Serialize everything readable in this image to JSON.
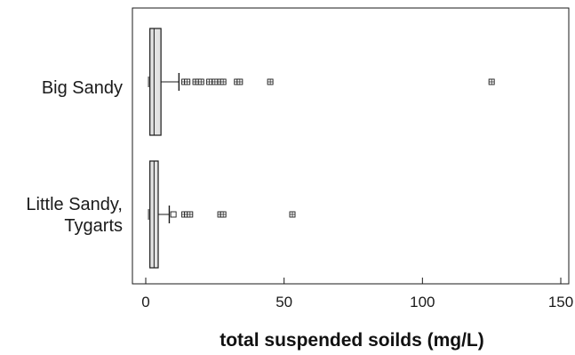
{
  "chart_data": {
    "type": "box",
    "orientation": "horizontal",
    "title": "",
    "xlabel": "total suspended soilds (mg/L)",
    "ylabel": "",
    "xlim": [
      -5,
      152
    ],
    "xticks": [
      0,
      50,
      100,
      150
    ],
    "xtick_labels": [
      "0",
      "50",
      "100",
      "150"
    ],
    "grid": false,
    "legend": "none",
    "categories": [
      {
        "label_lines": [
          "Big Sandy"
        ]
      },
      {
        "label_lines": [
          "Little Sandy,",
          "Tygarts"
        ]
      }
    ],
    "series": [
      {
        "category": "Big Sandy",
        "min": 1,
        "q1": 1.5,
        "median": 3,
        "q3": 5.5,
        "whisker_high": 12,
        "outliers": [
          14,
          15,
          18,
          19,
          20,
          23,
          25,
          27,
          28,
          33,
          34,
          45,
          125
        ]
      },
      {
        "category": "Little Sandy, Tygarts",
        "min": 1,
        "q1": 1.5,
        "median": 3,
        "q3": 4.5,
        "whisker_high": 8.5,
        "outliers": [
          10,
          14,
          15,
          16,
          27,
          28,
          53
        ]
      }
    ],
    "colors": {
      "box_fill": "#e3e3e3",
      "stroke": "#1a1a1a",
      "frame": "#1a1a1a"
    }
  }
}
